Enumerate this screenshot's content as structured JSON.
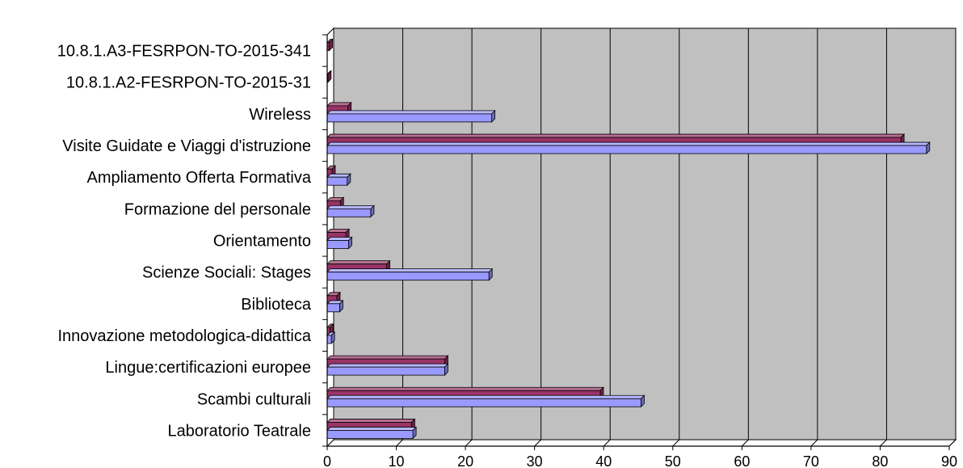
{
  "chart_data": {
    "type": "bar",
    "orientation": "horizontal",
    "style": "3d",
    "categories": [
      "10.8.1.A3-FESRPON-TO-2015-341",
      "10.8.1.A2-FESRPON-TO-2015-31",
      "Wireless",
      "Visite Guidate e Viaggi d'istruzione",
      "Ampliamento Offerta Formativa",
      "Formazione del personale",
      "Orientamento",
      "Scienze Sociali: Stages",
      "Biblioteca",
      "Innovazione metodologica-didattica",
      "Lingue:certificazioni europee",
      "Scambi culturali",
      "Laboratorio Teatrale"
    ],
    "series": [
      {
        "color": "#993366",
        "values": [
          0.3,
          0.1,
          3.0,
          83.0,
          0.7,
          1.9,
          2.7,
          8.6,
          1.4,
          0.4,
          17.0,
          39.5,
          12.2
        ]
      },
      {
        "color": "#9999ff",
        "values": [
          0,
          0,
          23.8,
          86.7,
          2.9,
          6.3,
          3.1,
          23.4,
          1.8,
          0.6,
          17.0,
          45.4,
          12.4
        ]
      }
    ],
    "xlim": [
      0,
      90
    ],
    "xticks": [
      0,
      10,
      20,
      30,
      40,
      50,
      60,
      70,
      80,
      90
    ],
    "grid": true,
    "plot_background": "#c0c0c0",
    "title": "",
    "xlabel": "",
    "ylabel": ""
  }
}
